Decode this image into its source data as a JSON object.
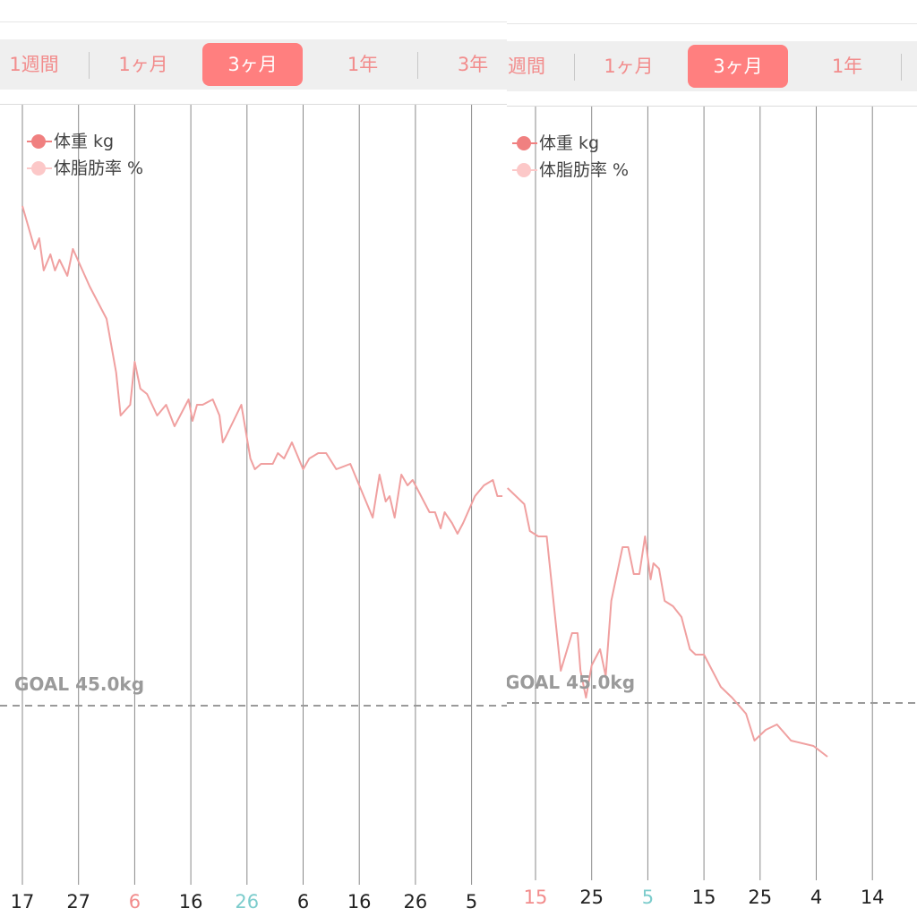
{
  "colors": {
    "accent": "#ff7f7f",
    "tab_text": "#f28c8c",
    "weight_line": "#f0a0a0",
    "weight_dot": "#f08080",
    "bodyfat_dot": "#fcc8c8",
    "goal_line": "#9a9a9a",
    "month_start_pink": "#f28c8c",
    "month_start_teal": "#7ccccc"
  },
  "left": {
    "tabs": [
      "1週間",
      "1ヶ月",
      "3ヶ月",
      "1年",
      "3年"
    ],
    "active_tab": "3ヶ月",
    "legend": [
      "体重 kg",
      "体脂肪率 %"
    ],
    "goal_label": "GOAL 45.0kg"
  },
  "right": {
    "tabs": [
      "週間",
      "1ヶ月",
      "3ヶ月",
      "1年"
    ],
    "active_tab": "3ヶ月",
    "legend": [
      "体重 kg",
      "体脂肪率 %"
    ],
    "goal_label": "GOAL 45.0kg"
  },
  "chart_data": [
    {
      "type": "line",
      "range": "3ヶ月",
      "x_ticks": [
        {
          "label": "17",
          "day": 0,
          "color": "default"
        },
        {
          "label": "27",
          "day": 10,
          "color": "default"
        },
        {
          "label": "6",
          "day": 20,
          "color": "pink"
        },
        {
          "label": "16",
          "day": 30,
          "color": "default"
        },
        {
          "label": "26",
          "day": 40,
          "color": "teal"
        },
        {
          "label": "6",
          "day": 50,
          "color": "default"
        },
        {
          "label": "16",
          "day": 60,
          "color": "default"
        },
        {
          "label": "26",
          "day": 70,
          "color": "default"
        },
        {
          "label": "5",
          "day": 80,
          "color": "default"
        }
      ],
      "ylim": [
        43.4,
        55.4
      ],
      "goal": 45.0,
      "series": [
        {
          "name": "体重 kg",
          "x": [
            0,
            2.2,
            3.0,
            3.8,
            5.0,
            5.8,
            6.6,
            8.0,
            9.0,
            12.0,
            15.0,
            16.7,
            17.5,
            19.2,
            20.0,
            21.0,
            22.2,
            24.0,
            25.6,
            27.1,
            28.1,
            29.6,
            30.3,
            31.1,
            32.1,
            33.9,
            35.1,
            35.7,
            36.2,
            39.0,
            40.6,
            41.4,
            42.5,
            44.6,
            45.5,
            46.6,
            48.0,
            50.0,
            51.1,
            52.7,
            54.1,
            55.9,
            58.4,
            62.4,
            63.6,
            64.7,
            65.4,
            66.3,
            67.5,
            68.6,
            69.5,
            71.0,
            72.5,
            73.5,
            74.5,
            75.2,
            76.5,
            77.5,
            78.5,
            80.6,
            82.2,
            83.8,
            84.6,
            85.5
          ],
          "y": [
            54.3,
            53.5,
            53.7,
            53.1,
            53.4,
            53.1,
            53.3,
            53.0,
            53.5,
            52.8,
            52.2,
            51.2,
            50.4,
            50.6,
            51.4,
            50.9,
            50.8,
            50.4,
            50.6,
            50.2,
            50.4,
            50.7,
            50.3,
            50.6,
            50.6,
            50.7,
            50.4,
            49.9,
            50.0,
            50.6,
            49.6,
            49.4,
            49.5,
            49.5,
            49.7,
            49.6,
            49.9,
            49.4,
            49.6,
            49.7,
            49.7,
            49.4,
            49.5,
            48.5,
            49.3,
            48.8,
            48.9,
            48.5,
            49.3,
            49.1,
            49.2,
            48.9,
            48.6,
            48.6,
            48.3,
            48.6,
            48.4,
            48.2,
            48.4,
            48.9,
            49.1,
            49.2,
            48.9,
            48.9
          ]
        }
      ]
    },
    {
      "type": "line",
      "range": "3ヶ月",
      "x_ticks": [
        {
          "label": "15",
          "day": 0,
          "color": "pink"
        },
        {
          "label": "25",
          "day": 10,
          "color": "default"
        },
        {
          "label": "5",
          "day": 20,
          "color": "teal"
        },
        {
          "label": "15",
          "day": 30,
          "color": "default"
        },
        {
          "label": "25",
          "day": 40,
          "color": "default"
        },
        {
          "label": "4",
          "day": 50,
          "color": "default"
        },
        {
          "label": "14",
          "day": 60,
          "color": "default"
        }
      ],
      "ylim": [
        43.4,
        55.4
      ],
      "goal": 45.0,
      "series": [
        {
          "name": "体重 kg",
          "x": [
            -5.0,
            -2.0,
            -1.0,
            0.5,
            2.0,
            3.5,
            4.5,
            6.5,
            7.5,
            8.0,
            9.0,
            10.0,
            11.5,
            12.5,
            13.5,
            15.5,
            16.5,
            17.5,
            18.5,
            19.5,
            20.5,
            21.0,
            22.0,
            23.0,
            24.5,
            26.0,
            27.5,
            28.5,
            30.0,
            33.0,
            35.0,
            37.5,
            39.0,
            41.0,
            43.0,
            45.5,
            49.5,
            52.0
          ],
          "y": [
            49.0,
            48.7,
            48.2,
            48.1,
            48.1,
            46.6,
            45.6,
            46.3,
            46.3,
            45.6,
            45.1,
            45.7,
            46.0,
            45.5,
            46.9,
            47.9,
            47.9,
            47.4,
            47.4,
            48.1,
            47.3,
            47.6,
            47.5,
            46.9,
            46.8,
            46.6,
            46.0,
            45.9,
            45.9,
            45.3,
            45.1,
            44.8,
            44.3,
            44.5,
            44.6,
            44.3,
            44.2,
            44.0
          ]
        }
      ]
    }
  ]
}
